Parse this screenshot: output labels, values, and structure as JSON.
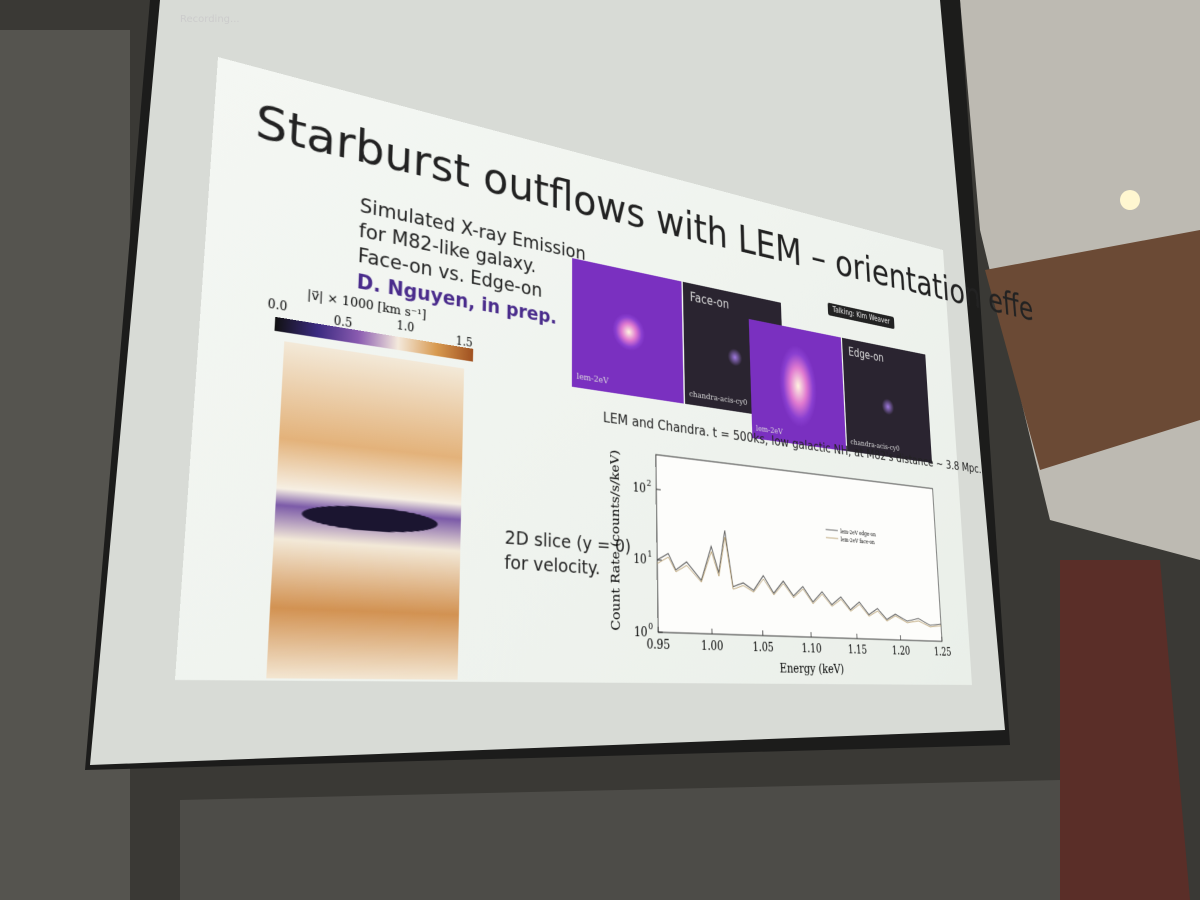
{
  "recording": "Recording...",
  "slide": {
    "title": "Starburst outflows with LEM – orientation effe",
    "tooltip": "Talking: Kim Weaver",
    "intro": [
      "Simulated X-ray Emission",
      "for M82-like galaxy.",
      "Face-on vs. Edge-on"
    ],
    "credit": "D. Nguyen, in prep.",
    "colorbar": {
      "label": "|v⃗| × 1000 [km s⁻¹]",
      "ticks": [
        "0.0",
        "0.5",
        "1.0",
        "1.5"
      ]
    },
    "slice_note": [
      "2D slice (y = 0)",
      "for velocity."
    ],
    "panels": [
      {
        "left_label": "lem-2eV",
        "right_title": "Face-on",
        "right_label": "chandra-acis-cy0"
      },
      {
        "left_label": "lem-2eV",
        "right_title": "Edge-on",
        "right_label": "chandra-acis-cy0"
      }
    ],
    "caption": "LEM and Chandra. t = 500ks, low galactic NH, at M82's distance ~ 3.8 Mpc.",
    "spectrum": {
      "xlabel": "Energy (keV)",
      "ylabel": "Count Rate (counts/s/keV)",
      "xticks": [
        "0.95",
        "1.00",
        "1.05",
        "1.10",
        "1.15",
        "1.20",
        "1.25"
      ],
      "yticks": [
        {
          "base": "10",
          "exponent": "0"
        },
        {
          "base": "10",
          "exponent": "1"
        },
        {
          "base": "10",
          "exponent": "2"
        }
      ],
      "legend": [
        "lem-2eV edge-on",
        "lem-2eV face-on"
      ]
    }
  }
}
